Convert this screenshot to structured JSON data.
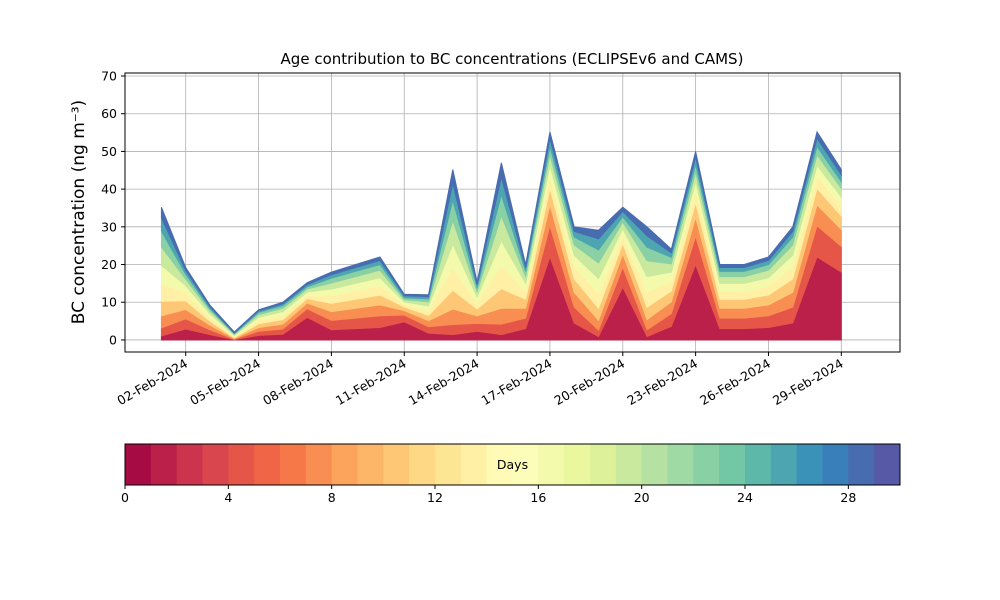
{
  "chart_data": {
    "type": "stacked_area",
    "title": "Age contribution to BC concentrations (ECLIPSEv6 and CAMS)",
    "y_label": "BC concentration (ng m⁻³)",
    "x": [
      "2024-02-01",
      "2024-02-02",
      "2024-02-03",
      "2024-02-04",
      "2024-02-05",
      "2024-02-06",
      "2024-02-07",
      "2024-02-08",
      "2024-02-09",
      "2024-02-10",
      "2024-02-11",
      "2024-02-12",
      "2024-02-13",
      "2024-02-14",
      "2024-02-15",
      "2024-02-16",
      "2024-02-17",
      "2024-02-18",
      "2024-02-19",
      "2024-02-20",
      "2024-02-21",
      "2024-02-22",
      "2024-02-23",
      "2024-02-24",
      "2024-02-25",
      "2024-02-26",
      "2024-02-27",
      "2024-02-28",
      "2024-02-29"
    ],
    "series": [
      {
        "color": "#ba2049",
        "values": [
          1.1,
          2.9,
          1.4,
          0.1,
          1.2,
          1.5,
          6,
          2.7,
          3,
          3.3,
          4.8,
          1.8,
          1.4,
          2.3,
          1.4,
          3,
          22,
          4.5,
          0.9,
          14,
          0.9,
          3.6,
          20,
          3,
          3,
          3.3,
          4.5,
          22,
          18
        ]
      },
      {
        "color": "#e55649",
        "values": [
          2.1,
          2.7,
          1.3,
          0.1,
          1.1,
          1.4,
          2.3,
          2.5,
          2.8,
          3.1,
          1.8,
          1.7,
          2.7,
          2.1,
          2.8,
          2.8,
          8.3,
          4.2,
          1.7,
          5.3,
          1.8,
          3.4,
          7.5,
          2.8,
          2.8,
          3.1,
          4.2,
          8.3,
          6.8
        ]
      },
      {
        "color": "#f98e52",
        "values": [
          3.2,
          2.5,
          1.2,
          0.2,
          1.0,
          1.3,
          1.5,
          2.3,
          2.6,
          2.9,
          1.2,
          1.6,
          4.1,
          2.0,
          4.2,
          2.6,
          5.5,
          3.9,
          2.6,
          3.5,
          2.7,
          3.1,
          5,
          2.6,
          2.6,
          2.9,
          3.9,
          5.5,
          4.5
        ]
      },
      {
        "color": "#fec776",
        "values": [
          3.9,
          2.3,
          1.1,
          0.2,
          1.0,
          1.2,
          1.2,
          2.2,
          2.4,
          2.6,
          1.0,
          1.4,
          5.0,
          1.8,
          5.2,
          2.4,
          4.4,
          3.6,
          3.2,
          2.8,
          3.3,
          2.9,
          4,
          2.4,
          2.4,
          2.6,
          3.6,
          4.4,
          3.6
        ]
      },
      {
        "color": "#fff0a5",
        "values": [
          4.6,
          2.1,
          1.0,
          0.3,
          0.9,
          1.1,
          0.9,
          2.0,
          2.2,
          2.4,
          0.7,
          1.3,
          5.9,
          1.7,
          6.1,
          2.2,
          3.3,
          3.3,
          3.8,
          2.1,
          3.9,
          2.6,
          3,
          2.2,
          2.2,
          2.4,
          3.3,
          3.3,
          2.7
        ]
      },
      {
        "color": "#f3faac",
        "values": [
          4.9,
          1.9,
          0.9,
          0.3,
          0.8,
          1.0,
          0.8,
          1.8,
          2,
          2.2,
          0.6,
          1.2,
          6.3,
          1.5,
          6.6,
          2,
          2.8,
          3,
          4.1,
          1.8,
          4.2,
          2.4,
          2.5,
          2,
          2,
          2.2,
          3,
          2.8,
          2.3
        ]
      },
      {
        "color": "#c9e99e",
        "values": [
          4.9,
          1.7,
          0.8,
          0.3,
          0.7,
          0.9,
          0.8,
          1.6,
          1.8,
          2.0,
          0.6,
          1.1,
          6.3,
          1.4,
          6.6,
          1.8,
          2.8,
          2.7,
          4.1,
          1.8,
          4.2,
          2.2,
          2.5,
          1.8,
          1.8,
          2.0,
          2.7,
          2.8,
          2.3
        ]
      },
      {
        "color": "#89d0a5",
        "values": [
          4.2,
          1.3,
          0.6,
          0.2,
          0.6,
          0.7,
          0.6,
          1.3,
          1.4,
          1.5,
          0.5,
          0.8,
          5.4,
          1.1,
          5.6,
          1.4,
          2.2,
          2.1,
          3.5,
          1.4,
          3.6,
          1.7,
          2,
          1.4,
          1.4,
          1.5,
          2.1,
          2.2,
          1.8
        ]
      },
      {
        "color": "#4ca5b1",
        "values": [
          3.5,
          1.0,
          0.5,
          0.2,
          0.4,
          0.5,
          0.6,
          0.9,
          1,
          1.1,
          0.5,
          0.6,
          4.5,
          0.8,
          4.7,
          1,
          2.2,
          1.5,
          2.9,
          1.4,
          3,
          1.2,
          2,
          1,
          1,
          1.1,
          1.5,
          2.2,
          1.8
        ]
      },
      {
        "color": "#486cb0",
        "values": [
          2.8,
          0.8,
          0.4,
          0.2,
          0.3,
          0.4,
          0.5,
          0.7,
          0.8,
          0.9,
          0.4,
          0.5,
          3.6,
          0.6,
          3.8,
          0.8,
          1.7,
          1.2,
          2.3,
          1.1,
          2.4,
          1.0,
          1.5,
          0.8,
          0.8,
          0.9,
          1.2,
          1.7,
          1.4
        ]
      }
    ],
    "xlim": [
      "2024-01-30T12:00",
      "2024-03-02T10:00"
    ],
    "xticks": [
      {
        "value": "2024-02-02",
        "label": "02-Feb-2024"
      },
      {
        "value": "2024-02-05",
        "label": "05-Feb-2024"
      },
      {
        "value": "2024-02-08",
        "label": "08-Feb-2024"
      },
      {
        "value": "2024-02-11",
        "label": "11-Feb-2024"
      },
      {
        "value": "2024-02-14",
        "label": "14-Feb-2024"
      },
      {
        "value": "2024-02-17",
        "label": "17-Feb-2024"
      },
      {
        "value": "2024-02-20",
        "label": "20-Feb-2024"
      },
      {
        "value": "2024-02-23",
        "label": "23-Feb-2024"
      },
      {
        "value": "2024-02-26",
        "label": "26-Feb-2024"
      },
      {
        "value": "2024-02-29",
        "label": "29-Feb-2024"
      }
    ],
    "ylim": [
      -3.2,
      70.8
    ],
    "yticks": [
      0,
      10,
      20,
      30,
      40,
      50,
      60,
      70
    ],
    "grid": true,
    "colorbar": {
      "label": "Days",
      "lim": [
        0,
        30
      ],
      "ticks": [
        0,
        4,
        8,
        12,
        16,
        20,
        24,
        28
      ],
      "bins": 30,
      "colormap": [
        "#9e0142",
        "#d53e4f",
        "#f46d43",
        "#fdae61",
        "#fee08b",
        "#ffffbf",
        "#e6f598",
        "#abdda4",
        "#66c2a5",
        "#3288bd",
        "#5e4fa2"
      ]
    }
  }
}
